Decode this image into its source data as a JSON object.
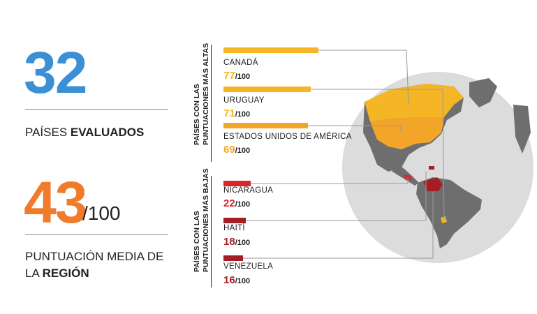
{
  "stats": {
    "evaluated": {
      "number": "32",
      "label_prefix": "PAÍSES ",
      "label_bold": "EVALUADOS",
      "color": "#3b8fd4"
    },
    "average": {
      "number": "43",
      "denominator": "/100",
      "label_line1": "PUNTUACIÓN MEDIA DE",
      "label_line2_prefix": "LA ",
      "label_line2_bold": "REGIÓN",
      "color": "#f07b2a"
    }
  },
  "groups": {
    "top": {
      "line1": "PAÍSES CON LAS",
      "line2": "PUNTUACIONES MÁS ALTAS"
    },
    "bottom": {
      "line1": "PAÍSES CON LAS",
      "line2": "PUNTUACIONES MÁS BAJAS"
    }
  },
  "top_countries": [
    {
      "name": "CANADÁ",
      "score": "77",
      "denom": "/100",
      "color": "#f5b626",
      "fraction": 0.77
    },
    {
      "name": "URUGUAY",
      "score": "71",
      "denom": "/100",
      "color": "#f5b626",
      "fraction": 0.71
    },
    {
      "name": "ESTADOS UNIDOS DE AMÉRICA",
      "score": "69",
      "denom": "/100",
      "color": "#f3a52a",
      "fraction": 0.69
    }
  ],
  "bottom_countries": [
    {
      "name": "NICARAGUA",
      "score": "22",
      "denom": "/100",
      "color": "#d8262b",
      "fraction": 0.22
    },
    {
      "name": "HAITÍ",
      "score": "18",
      "denom": "/100",
      "color": "#a51e23",
      "fraction": 0.18
    },
    {
      "name": "VENEZUELA",
      "score": "16",
      "denom": "/100",
      "color": "#a51e23",
      "fraction": 0.16
    }
  ],
  "colors": {
    "globe": "#dcdcdc",
    "land": "#6e6e6e",
    "highlight_high": "#f5b626",
    "highlight_low": "#c4161c"
  }
}
